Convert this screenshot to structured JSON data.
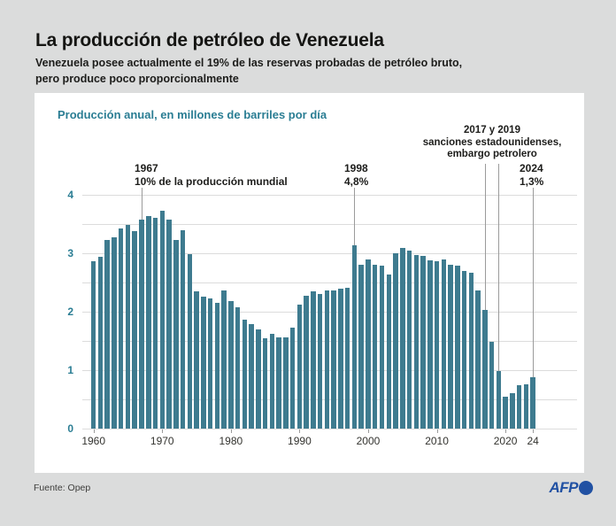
{
  "header": {
    "title": "La producción de petróleo de Venezuela",
    "subtitle_line1": "Venezuela posee actualmente el 19% de las reservas probadas de petróleo bruto,",
    "subtitle_line2": "pero produce poco proporcionalmente"
  },
  "footer": {
    "source": "Fuente: Opep",
    "logo_text": "AFP"
  },
  "colors": {
    "background": "#dbdcdc",
    "card": "#ffffff",
    "bar": "#3e7b8f",
    "accent_teal": "#2a7d93",
    "afp_blue": "#2151a3",
    "gridline": "#dcdcdc",
    "annotation_line": "#9b9b9b"
  },
  "chart_data": {
    "type": "bar",
    "title": "Producción anual, en millones de barriles por día",
    "ylabel": "millones de barriles por día",
    "ylim": [
      0,
      4
    ],
    "y_ticks": [
      0,
      1,
      2,
      3,
      4
    ],
    "gridline_step": 0.5,
    "grid": true,
    "x_start": 1960,
    "x_end": 2024,
    "x_ticks": [
      {
        "year": 1960,
        "label": "1960"
      },
      {
        "year": 1970,
        "label": "1970"
      },
      {
        "year": 1980,
        "label": "1980"
      },
      {
        "year": 1990,
        "label": "1990"
      },
      {
        "year": 2000,
        "label": "2000"
      },
      {
        "year": 2010,
        "label": "2010"
      },
      {
        "year": 2020,
        "label": "2020"
      },
      {
        "year": 2024,
        "label": "24"
      }
    ],
    "values": [
      2.86,
      2.94,
      3.23,
      3.27,
      3.42,
      3.49,
      3.38,
      3.57,
      3.63,
      3.61,
      3.72,
      3.57,
      3.23,
      3.4,
      2.98,
      2.35,
      2.26,
      2.22,
      2.15,
      2.36,
      2.18,
      2.07,
      1.86,
      1.79,
      1.7,
      1.54,
      1.62,
      1.56,
      1.56,
      1.73,
      2.12,
      2.28,
      2.35,
      2.3,
      2.37,
      2.37,
      2.39,
      2.41,
      3.13,
      2.81,
      2.89,
      2.81,
      2.79,
      2.64,
      3.0,
      3.09,
      3.05,
      2.97,
      2.95,
      2.88,
      2.86,
      2.89,
      2.81,
      2.79,
      2.7,
      2.67,
      2.37,
      2.03,
      1.49,
      0.98,
      0.54,
      0.6,
      0.74,
      0.76,
      0.88
    ],
    "annotations": [
      {
        "years": [
          1967
        ],
        "lines": [
          "1967",
          "10% de la producción mundial"
        ]
      },
      {
        "years": [
          1998
        ],
        "lines": [
          "1998",
          "4,8%"
        ]
      },
      {
        "years": [
          2024
        ],
        "lines": [
          "2024",
          "1,3%"
        ]
      },
      {
        "years": [
          2017,
          2019
        ],
        "lines": [
          "2017 y 2019",
          "sanciones estadounidenses,",
          "embargo petrolero"
        ]
      }
    ]
  }
}
